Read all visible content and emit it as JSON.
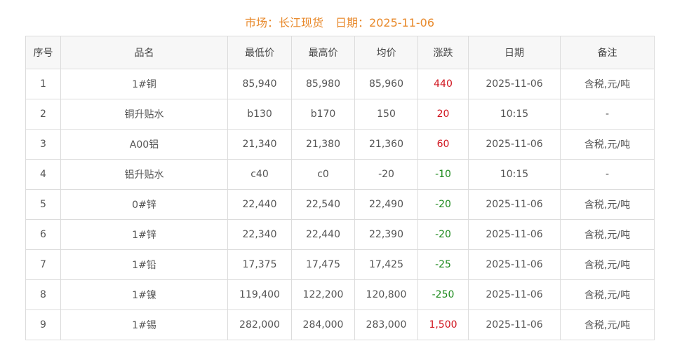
{
  "title": {
    "market": "市场：长江现货",
    "date": "日期：2025-11-06"
  },
  "colors": {
    "title": "#e8892b",
    "up": "#d0141e",
    "down": "#1c8a1c"
  },
  "columns": [
    "序号",
    "品名",
    "最低价",
    "最高价",
    "均价",
    "涨跌",
    "日期",
    "备注"
  ],
  "rows": [
    {
      "no": "1",
      "name": "1#铜",
      "low": "85,940",
      "high": "85,980",
      "avg": "85,960",
      "change": "440",
      "dir": "up",
      "date": "2025-11-06",
      "note": "含税,元/吨"
    },
    {
      "no": "2",
      "name": "铜升贴水",
      "low": "b130",
      "high": "b170",
      "avg": "150",
      "change": "20",
      "dir": "up",
      "date": "10:15",
      "note": "-"
    },
    {
      "no": "3",
      "name": "A00铝",
      "low": "21,340",
      "high": "21,380",
      "avg": "21,360",
      "change": "60",
      "dir": "up",
      "date": "2025-11-06",
      "note": "含税,元/吨"
    },
    {
      "no": "4",
      "name": "铝升贴水",
      "low": "c40",
      "high": "c0",
      "avg": "-20",
      "change": "-10",
      "dir": "down",
      "date": "10:15",
      "note": "-"
    },
    {
      "no": "5",
      "name": "0#锌",
      "low": "22,440",
      "high": "22,540",
      "avg": "22,490",
      "change": "-20",
      "dir": "down",
      "date": "2025-11-06",
      "note": "含税,元/吨"
    },
    {
      "no": "6",
      "name": "1#锌",
      "low": "22,340",
      "high": "22,440",
      "avg": "22,390",
      "change": "-20",
      "dir": "down",
      "date": "2025-11-06",
      "note": "含税,元/吨"
    },
    {
      "no": "7",
      "name": "1#铅",
      "low": "17,375",
      "high": "17,475",
      "avg": "17,425",
      "change": "-25",
      "dir": "down",
      "date": "2025-11-06",
      "note": "含税,元/吨"
    },
    {
      "no": "8",
      "name": "1#镍",
      "low": "119,400",
      "high": "122,200",
      "avg": "120,800",
      "change": "-250",
      "dir": "down",
      "date": "2025-11-06",
      "note": "含税,元/吨"
    },
    {
      "no": "9",
      "name": "1#锡",
      "low": "282,000",
      "high": "284,000",
      "avg": "283,000",
      "change": "1,500",
      "dir": "up",
      "date": "2025-11-06",
      "note": "含税,元/吨"
    }
  ]
}
